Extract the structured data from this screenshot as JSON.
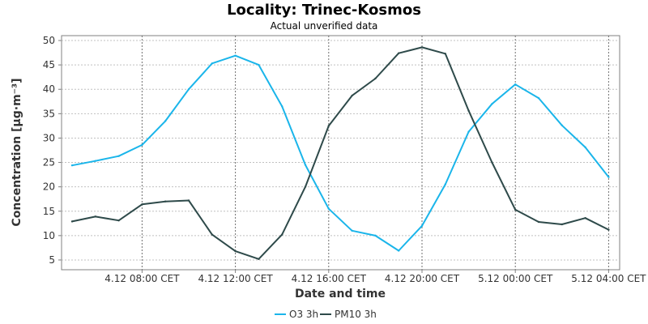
{
  "chart_data": {
    "type": "line",
    "title": "Locality: Trinec-Kosmos",
    "subtitle": "Actual unverified data",
    "xlabel": "Date and time",
    "ylabel": "Concentration [µg·m⁻³]",
    "ylim": [
      3,
      51
    ],
    "yticks": [
      5,
      10,
      15,
      20,
      25,
      30,
      35,
      40,
      45,
      50
    ],
    "x": [
      "4.12 05:00",
      "4.12 06:00",
      "4.12 07:00",
      "4.12 08:00",
      "4.12 09:00",
      "4.12 10:00",
      "4.12 11:00",
      "4.12 12:00",
      "4.12 13:00",
      "4.12 14:00",
      "4.12 15:00",
      "4.12 16:00",
      "4.12 17:00",
      "4.12 18:00",
      "4.12 19:00",
      "4.12 20:00",
      "4.12 21:00",
      "4.12 22:00",
      "4.12 23:00",
      "5.12 00:00",
      "5.12 01:00",
      "5.12 02:00",
      "5.12 03:00",
      "5.12 04:00"
    ],
    "xticks": [
      {
        "label": "4.12 08:00 CET",
        "index": 3
      },
      {
        "label": "4.12 12:00 CET",
        "index": 7
      },
      {
        "label": "4.12 16:00 CET",
        "index": 11
      },
      {
        "label": "4.12 20:00 CET",
        "index": 15
      },
      {
        "label": "5.12 00:00 CET",
        "index": 19
      },
      {
        "label": "5.12 04:00 CET",
        "index": 23
      }
    ],
    "grid": true,
    "legend_position": "bottom",
    "series": [
      {
        "name": "O3 3h",
        "color": "#1ab5ea",
        "values": [
          24.4,
          25.3,
          26.3,
          28.6,
          33.5,
          40.0,
          45.3,
          46.9,
          45.0,
          36.5,
          24.5,
          15.5,
          11.0,
          10.0,
          6.9,
          12.0,
          20.5,
          31.3,
          37.0,
          41.0,
          38.2,
          32.6,
          28.1,
          22.0
        ]
      },
      {
        "name": "PM10 3h",
        "color": "#2e4a4a",
        "values": [
          12.9,
          13.9,
          13.1,
          16.4,
          17.0,
          17.2,
          10.2,
          6.8,
          5.2,
          10.2,
          20.0,
          32.5,
          38.7,
          42.2,
          47.4,
          48.6,
          47.3,
          35.6,
          25.0,
          15.3,
          12.8,
          12.3,
          13.6,
          11.2
        ]
      }
    ]
  }
}
